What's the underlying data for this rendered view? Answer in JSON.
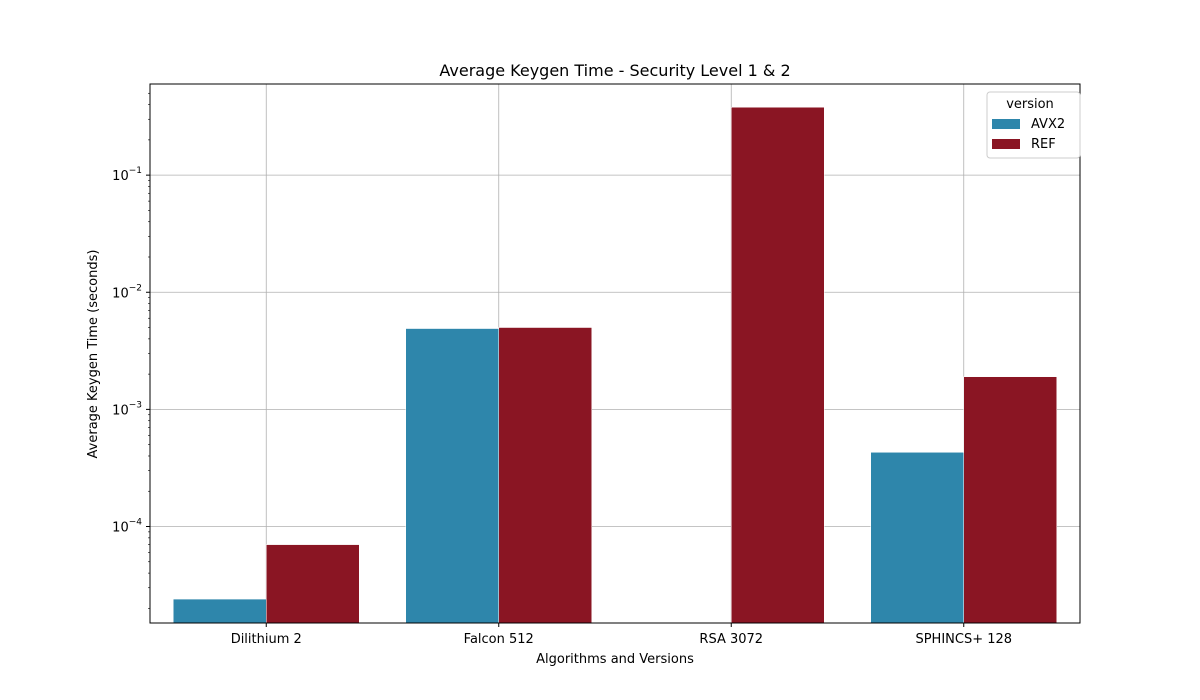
{
  "chart_data": {
    "type": "bar",
    "title": "Average Keygen Time - Security Level 1 & 2",
    "xlabel": "Algorithms and Versions",
    "ylabel": "Average Keygen Time (seconds)",
    "yscale": "log",
    "ylim": [
      1.5e-05,
      0.6
    ],
    "grid": true,
    "categories": [
      "Dilithium 2",
      "Falcon 512",
      "RSA 3072",
      "SPHINCS+ 128"
    ],
    "series": [
      {
        "name": "AVX2",
        "color": "#2e86ab",
        "values": [
          2.4e-05,
          0.0049,
          null,
          0.00043
        ]
      },
      {
        "name": "REF",
        "color": "#8a1523",
        "values": [
          7e-05,
          0.005,
          0.38,
          0.0019
        ]
      }
    ],
    "legend": {
      "title": "version",
      "position": "top-right"
    },
    "y_ticks": [
      {
        "value": 0.0001,
        "base": "10",
        "exp": "−4"
      },
      {
        "value": 0.001,
        "base": "10",
        "exp": "−3"
      },
      {
        "value": 0.01,
        "base": "10",
        "exp": "−2"
      },
      {
        "value": 0.1,
        "base": "10",
        "exp": "−1"
      }
    ]
  }
}
